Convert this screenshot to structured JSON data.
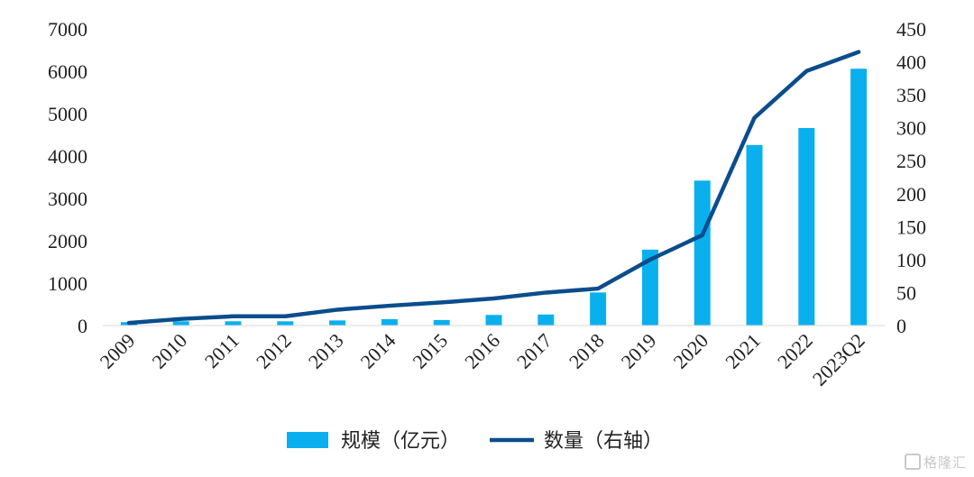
{
  "chart_data": {
    "type": "bar",
    "categories": [
      "2009",
      "2010",
      "2011",
      "2012",
      "2013",
      "2014",
      "2015",
      "2016",
      "2017",
      "2018",
      "2019",
      "2020",
      "2021",
      "2022",
      "2023Q2"
    ],
    "series": [
      {
        "name": "规模（亿元）",
        "type": "bar",
        "axis": "left",
        "values": [
          80,
          100,
          100,
          100,
          120,
          150,
          130,
          250,
          260,
          780,
          1790,
          3420,
          4260,
          4660,
          6060
        ]
      },
      {
        "name": "数量（右轴）",
        "type": "line",
        "axis": "right",
        "values": [
          4,
          10,
          14,
          14,
          24,
          30,
          35,
          41,
          50,
          56,
          100,
          137,
          315,
          386,
          415
        ]
      }
    ],
    "y_left": {
      "lim": [
        0,
        7000
      ],
      "ticks": [
        "0",
        "1000",
        "2000",
        "3000",
        "4000",
        "5000",
        "6000",
        "7000"
      ]
    },
    "y_right": {
      "lim": [
        0,
        450
      ],
      "ticks": [
        "0",
        "50",
        "100",
        "150",
        "200",
        "250",
        "300",
        "350",
        "400",
        "450"
      ]
    },
    "colors": {
      "bar": "#0AB0EE",
      "line": "#0B4D8C"
    },
    "legend_position": "bottom",
    "grid": false
  },
  "watermark": "格隆汇"
}
